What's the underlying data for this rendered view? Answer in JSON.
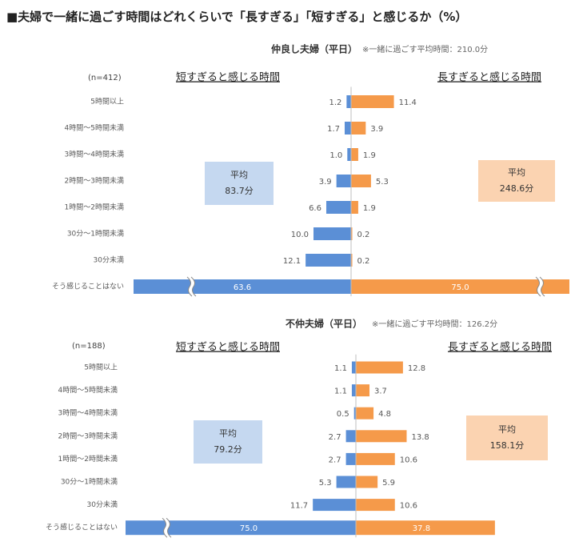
{
  "title": "■夫婦で一緒に過ごす時間はどれくらいで「長すぎる」「短すぎる」と感じるか（%）",
  "colors": {
    "short": "#5b8fd6",
    "long": "#f59a4a",
    "short_box": "#c5d8f0",
    "long_box": "#fbd3b1",
    "text": "#404040"
  },
  "categories": [
    "5時間以上",
    "4時間～5時間未満",
    "3時間～4時間未満",
    "2時間～3時間未満",
    "1時間～2時間未満",
    "30分～1時間未満",
    "30分未満",
    "そう感じることはない"
  ],
  "chart_data": [
    {
      "type": "bar",
      "title": "仲良し夫婦（平日）",
      "note": "※一緒に過ごす平均時間：210.0分",
      "n": "(n=412)",
      "left_label": "短すぎると感じる時間",
      "right_label": "長すぎると感じる時間",
      "categories": [
        "5時間以上",
        "4時間～5時間未満",
        "3時間～4時間未満",
        "2時間～3時間未満",
        "1時間～2時間未満",
        "30分～1時間未満",
        "30分未満",
        "そう感じることはない"
      ],
      "series": [
        {
          "name": "短すぎると感じる時間",
          "values": [
            1.2,
            1.7,
            1.0,
            3.9,
            6.6,
            10.0,
            12.1,
            63.6
          ]
        },
        {
          "name": "長すぎると感じる時間",
          "values": [
            11.4,
            3.9,
            1.9,
            5.3,
            1.9,
            0.2,
            0.2,
            75.0
          ]
        }
      ],
      "avg_short": {
        "label": "平均",
        "value": "83.7分"
      },
      "avg_long": {
        "label": "平均",
        "value": "248.6分"
      }
    },
    {
      "type": "bar",
      "title": "不仲夫婦（平日）",
      "note": "※一緒に過ごす平均時間：126.2分",
      "n": "(n=188)",
      "left_label": "短すぎると感じる時間",
      "right_label": "長すぎると感じる時間",
      "categories": [
        "5時間以上",
        "4時間～5時間未満",
        "3時間～4時間未満",
        "2時間～3時間未満",
        "1時間～2時間未満",
        "30分～1時間未満",
        "30分未満",
        "そう感じることはない"
      ],
      "series": [
        {
          "name": "短すぎると感じる時間",
          "values": [
            1.1,
            1.1,
            0.5,
            2.7,
            2.7,
            5.3,
            11.7,
            75.0
          ]
        },
        {
          "name": "長すぎると感じる時間",
          "values": [
            12.8,
            3.7,
            4.8,
            13.8,
            10.6,
            5.9,
            10.6,
            37.8
          ]
        }
      ],
      "avg_short": {
        "label": "平均",
        "value": "79.2分"
      },
      "avg_long": {
        "label": "平均",
        "value": "158.1分"
      }
    }
  ]
}
